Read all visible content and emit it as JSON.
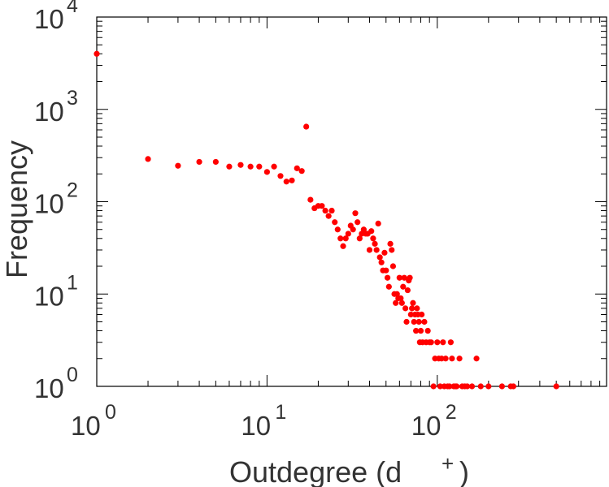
{
  "chart_data": {
    "type": "scatter",
    "title": "",
    "xlabel": "Outdegree (d",
    "xlabel_sup": "+",
    "xlabel_close": ")",
    "ylabel": "Frequency",
    "xscale": "log",
    "yscale": "log",
    "xlim": [
      1,
      1000
    ],
    "ylim": [
      1,
      10000
    ],
    "grid": false,
    "x_ticks": [
      {
        "base": "10",
        "exp": "0"
      },
      {
        "base": "10",
        "exp": "1"
      },
      {
        "base": "10",
        "exp": "2"
      }
    ],
    "y_ticks": [
      {
        "base": "10",
        "exp": "0"
      },
      {
        "base": "10",
        "exp": "1"
      },
      {
        "base": "10",
        "exp": "2"
      },
      {
        "base": "10",
        "exp": "3"
      },
      {
        "base": "10",
        "exp": "4"
      }
    ],
    "color": "#ff0000",
    "points": [
      [
        1,
        4000
      ],
      [
        2,
        290
      ],
      [
        3,
        245
      ],
      [
        4,
        270
      ],
      [
        5,
        270
      ],
      [
        6,
        240
      ],
      [
        7,
        250
      ],
      [
        8,
        240
      ],
      [
        9,
        240
      ],
      [
        10,
        210
      ],
      [
        11,
        240
      ],
      [
        12,
        190
      ],
      [
        13,
        165
      ],
      [
        14,
        170
      ],
      [
        15,
        230
      ],
      [
        16,
        215
      ],
      [
        17,
        650
      ],
      [
        18,
        105
      ],
      [
        19,
        85
      ],
      [
        20,
        90
      ],
      [
        21,
        90
      ],
      [
        22,
        80
      ],
      [
        23,
        70
      ],
      [
        24,
        80
      ],
      [
        25,
        60
      ],
      [
        26,
        50
      ],
      [
        27,
        40
      ],
      [
        28,
        33
      ],
      [
        29,
        40
      ],
      [
        30,
        45
      ],
      [
        31,
        55
      ],
      [
        32,
        50
      ],
      [
        33,
        75
      ],
      [
        34,
        60
      ],
      [
        35,
        40
      ],
      [
        36,
        45
      ],
      [
        37,
        50
      ],
      [
        38,
        45
      ],
      [
        39,
        45
      ],
      [
        40,
        30
      ],
      [
        41,
        48
      ],
      [
        42,
        40
      ],
      [
        43,
        35
      ],
      [
        44,
        30
      ],
      [
        45,
        58
      ],
      [
        46,
        25
      ],
      [
        47,
        22
      ],
      [
        48,
        18
      ],
      [
        49,
        28
      ],
      [
        50,
        18
      ],
      [
        51,
        15
      ],
      [
        52,
        12
      ],
      [
        53,
        35
      ],
      [
        54,
        30
      ],
      [
        55,
        20
      ],
      [
        56,
        10
      ],
      [
        57,
        8
      ],
      [
        58,
        10
      ],
      [
        59,
        9
      ],
      [
        60,
        15
      ],
      [
        61,
        9
      ],
      [
        62,
        8
      ],
      [
        63,
        12
      ],
      [
        64,
        15
      ],
      [
        65,
        7
      ],
      [
        66,
        5
      ],
      [
        67,
        11
      ],
      [
        68,
        14
      ],
      [
        69,
        15
      ],
      [
        70,
        6
      ],
      [
        71,
        7
      ],
      [
        72,
        8
      ],
      [
        73,
        5
      ],
      [
        74,
        6
      ],
      [
        75,
        4
      ],
      [
        76,
        7
      ],
      [
        77,
        6
      ],
      [
        78,
        5
      ],
      [
        79,
        3
      ],
      [
        80,
        4
      ],
      [
        81,
        6
      ],
      [
        82,
        3
      ],
      [
        84,
        5
      ],
      [
        86,
        3
      ],
      [
        88,
        4
      ],
      [
        90,
        3
      ],
      [
        92,
        3
      ],
      [
        95,
        1
      ],
      [
        97,
        2
      ],
      [
        100,
        3
      ],
      [
        102,
        2
      ],
      [
        104,
        1
      ],
      [
        106,
        2
      ],
      [
        108,
        3
      ],
      [
        110,
        1
      ],
      [
        112,
        2
      ],
      [
        115,
        1
      ],
      [
        118,
        1
      ],
      [
        120,
        3
      ],
      [
        122,
        2
      ],
      [
        125,
        1
      ],
      [
        128,
        1
      ],
      [
        130,
        1
      ],
      [
        135,
        2
      ],
      [
        140,
        1
      ],
      [
        145,
        1
      ],
      [
        150,
        1
      ],
      [
        160,
        1
      ],
      [
        170,
        2
      ],
      [
        180,
        1
      ],
      [
        200,
        1
      ],
      [
        240,
        1
      ],
      [
        270,
        1
      ],
      [
        280,
        1
      ],
      [
        500,
        1
      ]
    ]
  }
}
